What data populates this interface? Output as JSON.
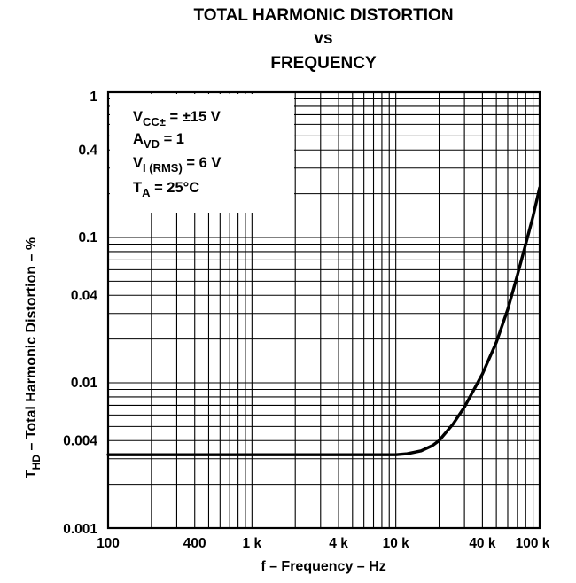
{
  "chart_data": {
    "type": "line",
    "title": [
      "TOTAL HARMONIC DISTORTION",
      "vs",
      "FREQUENCY"
    ],
    "xlabel": "f – Frequency – Hz",
    "ylabel": {
      "prefix": "T",
      "sub": "HD",
      "rest": " – Total Harmonic Distortion – %"
    },
    "x_scale": "log",
    "y_scale": "log",
    "xlim": [
      100,
      100000
    ],
    "ylim": [
      0.001,
      1
    ],
    "grid": true,
    "x_ticks": [
      {
        "value": 100,
        "label": "100"
      },
      {
        "value": 400,
        "label": "400"
      },
      {
        "value": 1000,
        "label": "1 k"
      },
      {
        "value": 4000,
        "label": "4 k"
      },
      {
        "value": 10000,
        "label": "10 k"
      },
      {
        "value": 40000,
        "label": "40 k"
      },
      {
        "value": 100000,
        "label": "100 k"
      }
    ],
    "y_ticks": [
      {
        "value": 1,
        "label": "1"
      },
      {
        "value": 0.4,
        "label": "0.4"
      },
      {
        "value": 0.1,
        "label": "0.1"
      },
      {
        "value": 0.04,
        "label": "0.04"
      },
      {
        "value": 0.01,
        "label": "0.01"
      },
      {
        "value": 0.004,
        "label": "0.004"
      },
      {
        "value": 0.001,
        "label": "0.001"
      }
    ],
    "conditions": [
      {
        "main": "V",
        "sub": "CC±",
        "rest": " = ±15 V"
      },
      {
        "main": "A",
        "sub": "VD",
        "rest": " = 1"
      },
      {
        "main": "V",
        "sub": "I (RMS)",
        "rest": " =  6 V"
      },
      {
        "main": "T",
        "sub": "A",
        "rest": " =  25°C"
      }
    ],
    "series": [
      {
        "x": [
          100,
          1000,
          10000,
          12000,
          15000,
          18000,
          20000,
          25000,
          30000,
          40000,
          50000,
          60000,
          70000,
          80000,
          90000,
          100000
        ],
        "y": [
          0.0032,
          0.0032,
          0.0032,
          0.00325,
          0.0034,
          0.0037,
          0.004,
          0.0052,
          0.0068,
          0.0115,
          0.019,
          0.032,
          0.055,
          0.09,
          0.14,
          0.22
        ]
      }
    ]
  }
}
